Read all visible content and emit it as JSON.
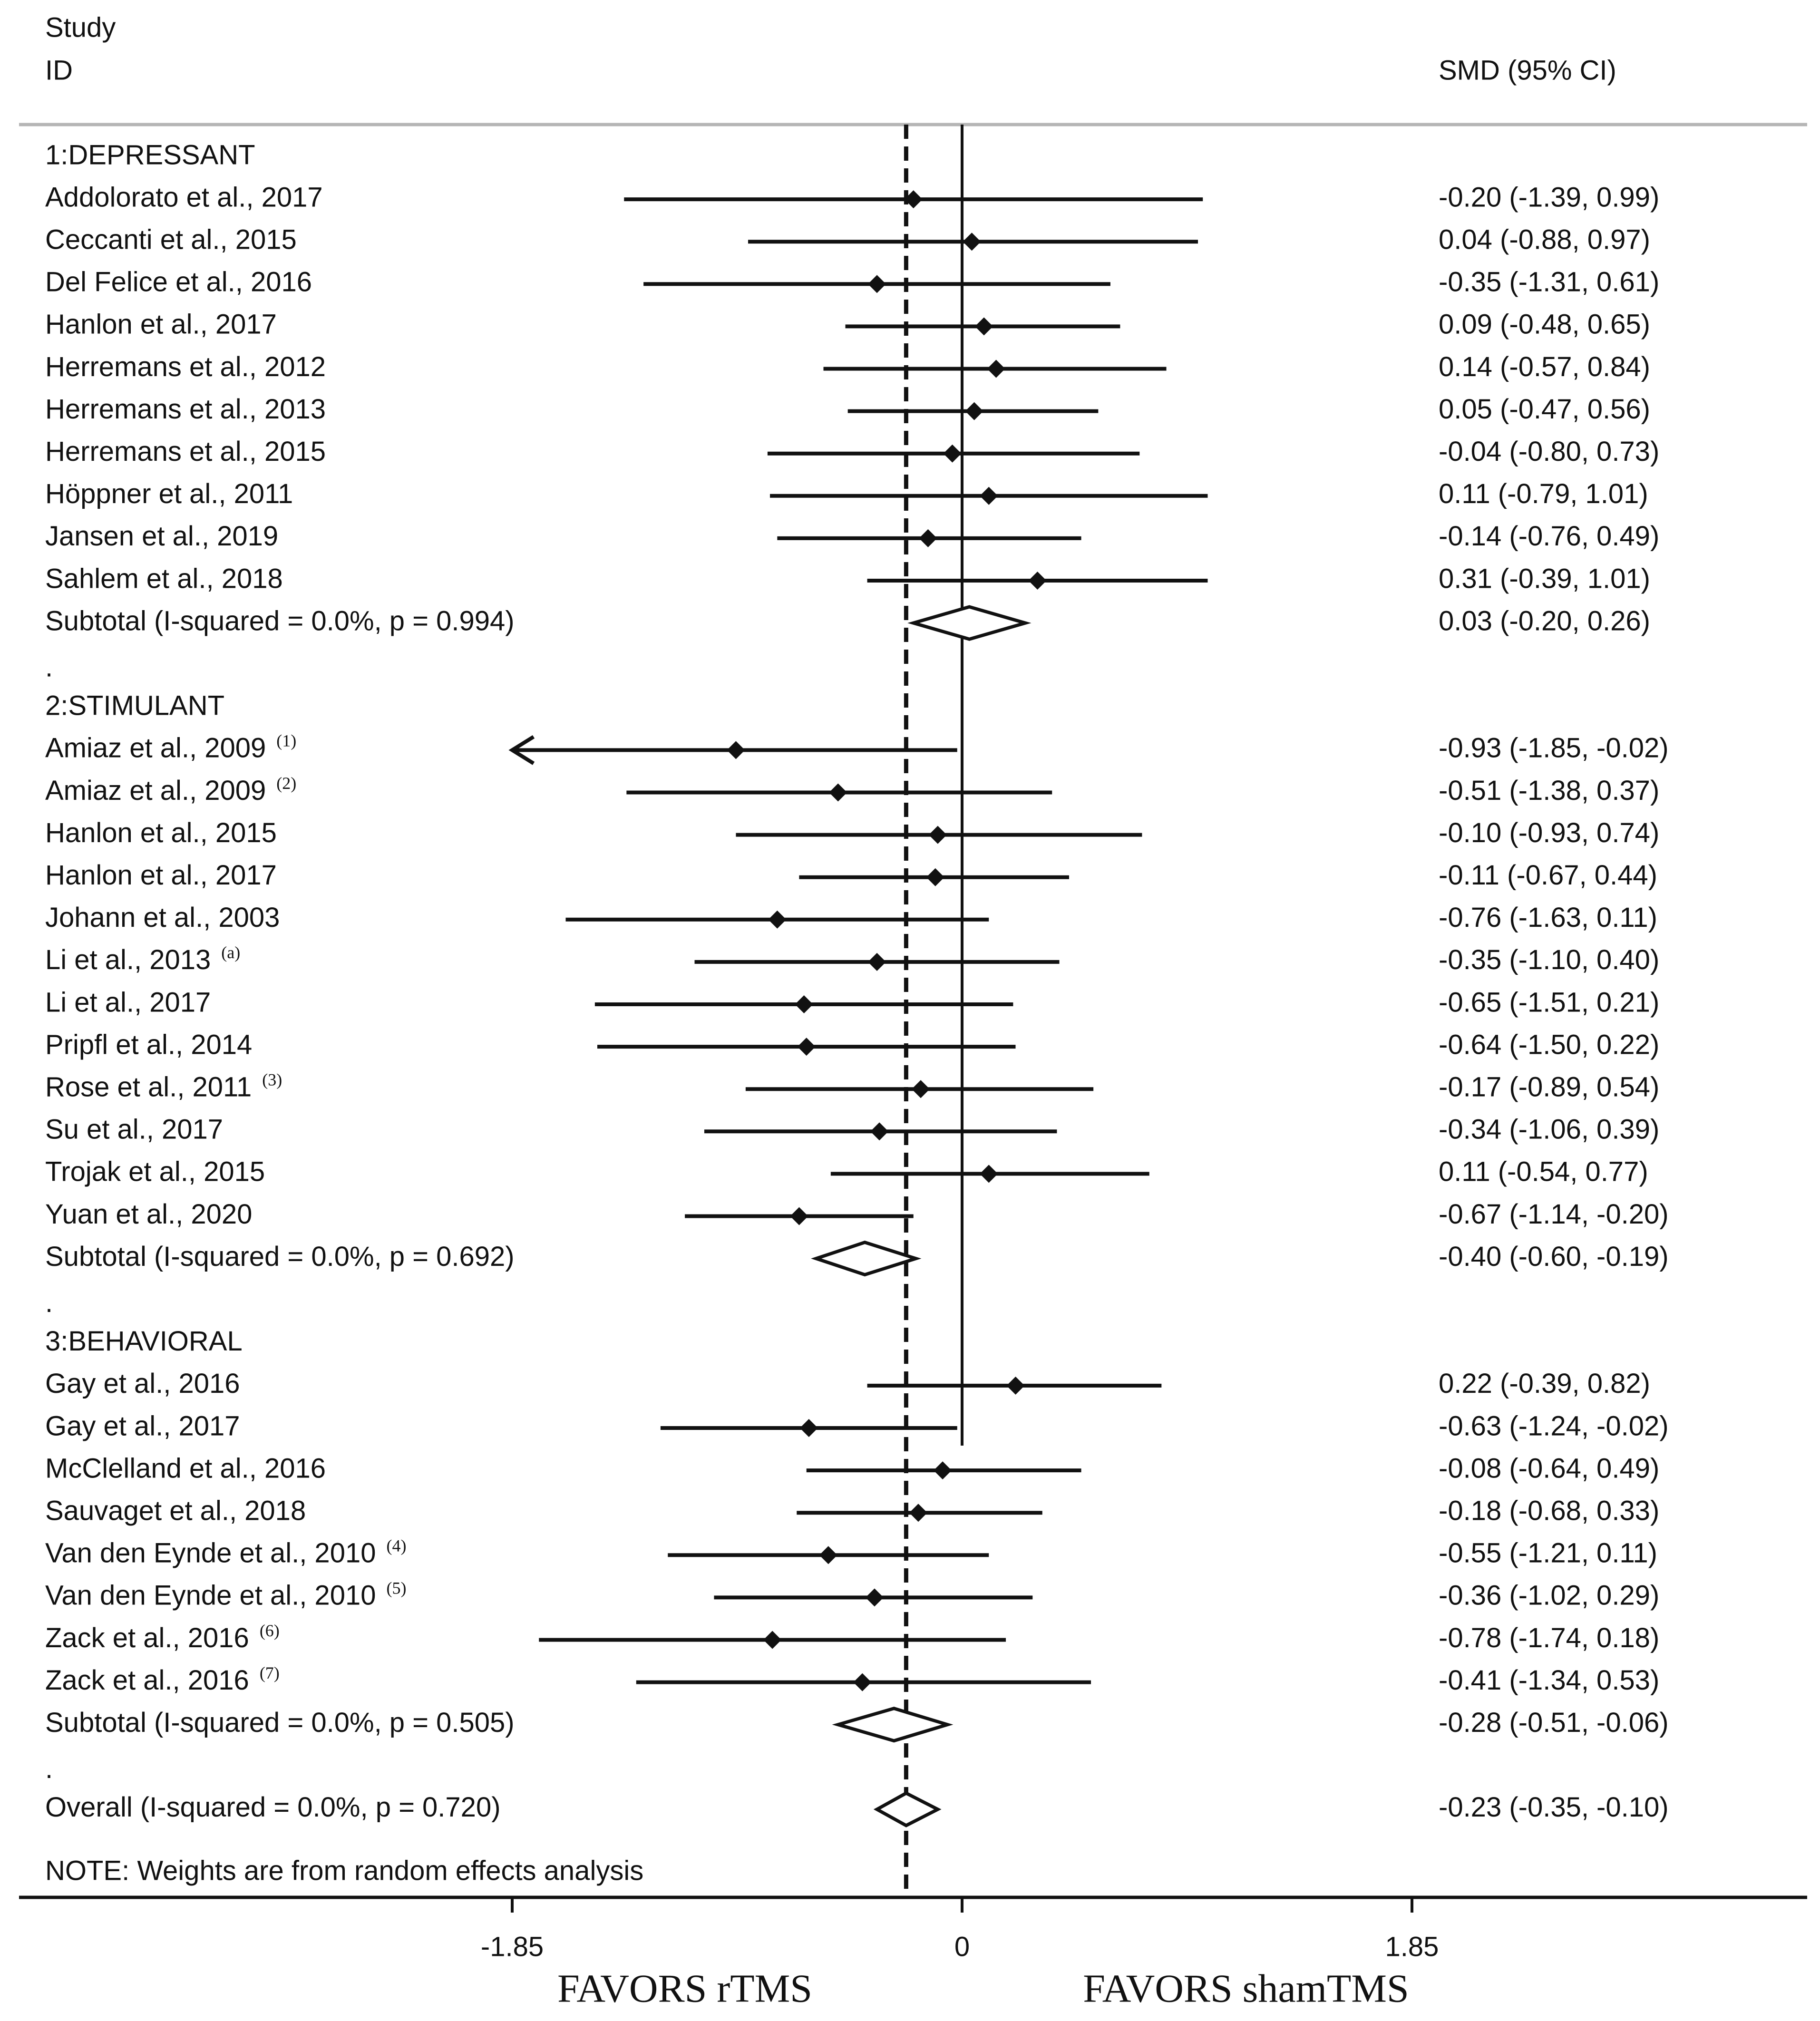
{
  "chart_data": {
    "type": "forest",
    "header": {
      "study_line1": "Study",
      "study_line2": "ID",
      "effect_col": "SMD (95% CI)"
    },
    "x_axis": {
      "ticks": [
        -1.85,
        0,
        1.85
      ],
      "tick_labels": [
        "-1.85",
        "0",
        "1.85"
      ],
      "xlim": [
        -1.85,
        1.85
      ],
      "reference_line": 0,
      "overall_line": -0.23,
      "left_label": "FAVORS rTMS",
      "right_label": "FAVORS shamTMS"
    },
    "note": "NOTE: Weights are from random effects analysis",
    "rows": [
      {
        "kind": "group",
        "label": "1:DEPRESSANT"
      },
      {
        "kind": "study",
        "label": "Addolorato et al., 2017",
        "sup": "",
        "est": -0.2,
        "lo": -1.39,
        "hi": 0.99,
        "ci_text": "-0.20 (-1.39, 0.99)"
      },
      {
        "kind": "study",
        "label": "Ceccanti et al., 2015",
        "sup": "",
        "est": 0.04,
        "lo": -0.88,
        "hi": 0.97,
        "ci_text": "0.04 (-0.88, 0.97)"
      },
      {
        "kind": "study",
        "label": "Del Felice et al., 2016",
        "sup": "",
        "est": -0.35,
        "lo": -1.31,
        "hi": 0.61,
        "ci_text": "-0.35 (-1.31, 0.61)"
      },
      {
        "kind": "study",
        "label": "Hanlon et al., 2017",
        "sup": "",
        "est": 0.09,
        "lo": -0.48,
        "hi": 0.65,
        "ci_text": "0.09 (-0.48, 0.65)"
      },
      {
        "kind": "study",
        "label": "Herremans et al., 2012",
        "sup": "",
        "est": 0.14,
        "lo": -0.57,
        "hi": 0.84,
        "ci_text": "0.14 (-0.57, 0.84)"
      },
      {
        "kind": "study",
        "label": "Herremans et al., 2013",
        "sup": "",
        "est": 0.05,
        "lo": -0.47,
        "hi": 0.56,
        "ci_text": "0.05 (-0.47, 0.56)"
      },
      {
        "kind": "study",
        "label": "Herremans et al., 2015",
        "sup": "",
        "est": -0.04,
        "lo": -0.8,
        "hi": 0.73,
        "ci_text": "-0.04 (-0.80, 0.73)"
      },
      {
        "kind": "study",
        "label": "Höppner et al., 2011",
        "sup": "",
        "est": 0.11,
        "lo": -0.79,
        "hi": 1.01,
        "ci_text": "0.11 (-0.79, 1.01)"
      },
      {
        "kind": "study",
        "label": "Jansen et al., 2019",
        "sup": "",
        "est": -0.14,
        "lo": -0.76,
        "hi": 0.49,
        "ci_text": "-0.14 (-0.76, 0.49)"
      },
      {
        "kind": "study",
        "label": "Sahlem et al., 2018",
        "sup": "",
        "est": 0.31,
        "lo": -0.39,
        "hi": 1.01,
        "ci_text": "0.31 (-0.39, 1.01)"
      },
      {
        "kind": "subtotal",
        "label": "Subtotal  (I-squared = 0.0%, p = 0.994)",
        "est": 0.03,
        "lo": -0.2,
        "hi": 0.26,
        "ci_text": "0.03 (-0.20, 0.26)"
      },
      {
        "kind": "dot",
        "label": "."
      },
      {
        "kind": "group",
        "label": "2:STIMULANT"
      },
      {
        "kind": "study",
        "label": "Amiaz et al., 2009",
        "sup": "(1)",
        "est": -0.93,
        "lo": -1.85,
        "hi": -0.02,
        "ci_text": "-0.93 (-1.85, -0.02)",
        "arrow_left": true
      },
      {
        "kind": "study",
        "label": "Amiaz et al., 2009",
        "sup": "(2)",
        "est": -0.51,
        "lo": -1.38,
        "hi": 0.37,
        "ci_text": "-0.51 (-1.38, 0.37)"
      },
      {
        "kind": "study",
        "label": "Hanlon et al., 2015",
        "sup": "",
        "est": -0.1,
        "lo": -0.93,
        "hi": 0.74,
        "ci_text": "-0.10 (-0.93, 0.74)"
      },
      {
        "kind": "study",
        "label": "Hanlon et al., 2017",
        "sup": "",
        "est": -0.11,
        "lo": -0.67,
        "hi": 0.44,
        "ci_text": "-0.11 (-0.67, 0.44)"
      },
      {
        "kind": "study",
        "label": "Johann et al., 2003",
        "sup": "",
        "est": -0.76,
        "lo": -1.63,
        "hi": 0.11,
        "ci_text": "-0.76 (-1.63, 0.11)"
      },
      {
        "kind": "study",
        "label": "Li et al., 2013",
        "sup": "(a)",
        "est": -0.35,
        "lo": -1.1,
        "hi": 0.4,
        "ci_text": "-0.35 (-1.10, 0.40)"
      },
      {
        "kind": "study",
        "label": "Li et al., 2017",
        "sup": "",
        "est": -0.65,
        "lo": -1.51,
        "hi": 0.21,
        "ci_text": "-0.65 (-1.51, 0.21)"
      },
      {
        "kind": "study",
        "label": "Pripfl et al., 2014",
        "sup": "",
        "est": -0.64,
        "lo": -1.5,
        "hi": 0.22,
        "ci_text": "-0.64 (-1.50, 0.22)"
      },
      {
        "kind": "study",
        "label": "Rose et al., 2011",
        "sup": "(3)",
        "est": -0.17,
        "lo": -0.89,
        "hi": 0.54,
        "ci_text": "-0.17 (-0.89, 0.54)"
      },
      {
        "kind": "study",
        "label": "Su et al., 2017",
        "sup": "",
        "est": -0.34,
        "lo": -1.06,
        "hi": 0.39,
        "ci_text": "-0.34 (-1.06, 0.39)"
      },
      {
        "kind": "study",
        "label": "Trojak et al., 2015",
        "sup": "",
        "est": 0.11,
        "lo": -0.54,
        "hi": 0.77,
        "ci_text": "0.11 (-0.54, 0.77)"
      },
      {
        "kind": "study",
        "label": "Yuan et al., 2020",
        "sup": "",
        "est": -0.67,
        "lo": -1.14,
        "hi": -0.2,
        "ci_text": "-0.67 (-1.14, -0.20)"
      },
      {
        "kind": "subtotal",
        "label": "Subtotal  (I-squared = 0.0%, p = 0.692)",
        "est": -0.4,
        "lo": -0.6,
        "hi": -0.19,
        "ci_text": "-0.40 (-0.60, -0.19)"
      },
      {
        "kind": "dot",
        "label": "."
      },
      {
        "kind": "group",
        "label": "3:BEHAVIORAL"
      },
      {
        "kind": "study",
        "label": "Gay et al., 2016",
        "sup": "",
        "est": 0.22,
        "lo": -0.39,
        "hi": 0.82,
        "ci_text": "0.22 (-0.39, 0.82)"
      },
      {
        "kind": "study",
        "label": "Gay et al., 2017",
        "sup": "",
        "est": -0.63,
        "lo": -1.24,
        "hi": -0.02,
        "ci_text": "-0.63 (-1.24, -0.02)"
      },
      {
        "kind": "study",
        "label": "McClelland et al., 2016",
        "sup": "",
        "est": -0.08,
        "lo": -0.64,
        "hi": 0.49,
        "ci_text": "-0.08 (-0.64, 0.49)"
      },
      {
        "kind": "study",
        "label": "Sauvaget et al., 2018",
        "sup": "",
        "est": -0.18,
        "lo": -0.68,
        "hi": 0.33,
        "ci_text": "-0.18 (-0.68, 0.33)"
      },
      {
        "kind": "study",
        "label": "Van den Eynde et al., 2010",
        "sup": "(4)",
        "est": -0.55,
        "lo": -1.21,
        "hi": 0.11,
        "ci_text": "-0.55 (-1.21, 0.11)"
      },
      {
        "kind": "study",
        "label": "Van den Eynde et al., 2010",
        "sup": "(5)",
        "est": -0.36,
        "lo": -1.02,
        "hi": 0.29,
        "ci_text": "-0.36 (-1.02, 0.29)"
      },
      {
        "kind": "study",
        "label": "Zack et al., 2016",
        "sup": "(6)",
        "est": -0.78,
        "lo": -1.74,
        "hi": 0.18,
        "ci_text": "-0.78 (-1.74, 0.18)"
      },
      {
        "kind": "study",
        "label": "Zack et al., 2016",
        "sup": "(7)",
        "est": -0.41,
        "lo": -1.34,
        "hi": 0.53,
        "ci_text": "-0.41 (-1.34, 0.53)"
      },
      {
        "kind": "subtotal",
        "label": "Subtotal  (I-squared = 0.0%, p = 0.505)",
        "est": -0.28,
        "lo": -0.51,
        "hi": -0.06,
        "ci_text": "-0.28 (-0.51, -0.06)"
      },
      {
        "kind": "dot",
        "label": "."
      },
      {
        "kind": "overall",
        "label": "Overall  (I-squared = 0.0%, p = 0.720)",
        "est": -0.23,
        "lo": -0.35,
        "hi": -0.1,
        "ci_text": "-0.23 (-0.35, -0.10)"
      }
    ]
  }
}
